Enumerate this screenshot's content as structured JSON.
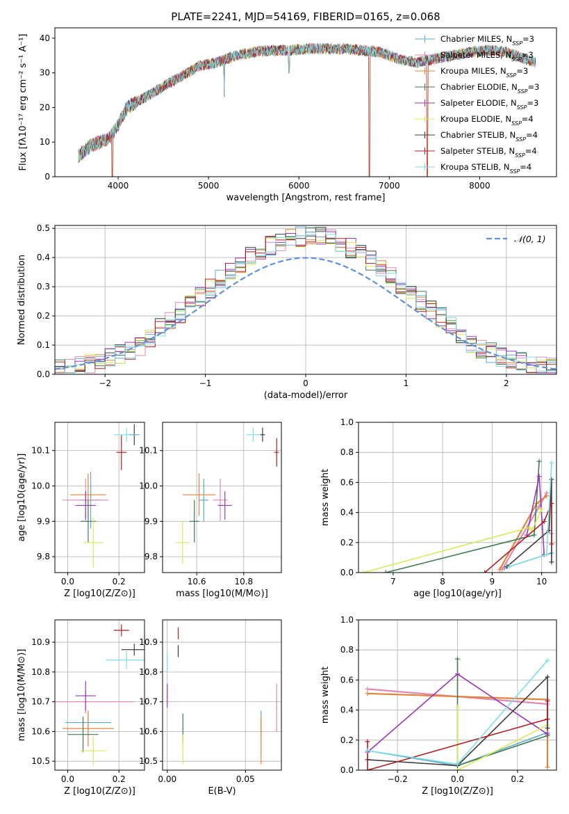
{
  "figure_title": "PLATE=2241, MJD=54169, FIBERID=0165, z=0.068",
  "colors": {
    "chabrier_miles": "#5aa9c9",
    "salpeter_miles": "#e087b5",
    "kroupa_miles": "#e0853c",
    "chabrier_elodie": "#3f7a52",
    "salpeter_elodie": "#9b36b8",
    "kroupa_elodie": "#d8ea5a",
    "chabrier_stelib": "#3c3c3c",
    "salpeter_stelib": "#b11e22",
    "kroupa_stelib": "#7fdde6",
    "normal": "#5f8fdc"
  },
  "chart_data": [
    {
      "id": "spectrum",
      "type": "line",
      "xlabel": "wavelength [Angstrom, rest frame]",
      "ylabel": "Flux [fλ10⁻¹⁷ erg cm⁻² s⁻¹ A⁻¹]",
      "xlim": [
        3300,
        8850
      ],
      "ylim": [
        0,
        43
      ],
      "xticks": [
        4000,
        5000,
        6000,
        7000,
        8000
      ],
      "yticks": [
        0,
        10,
        20,
        30,
        40
      ],
      "legend_position": "top-right",
      "series": [
        {
          "name": "Chabrier MILES, N_SSP=3",
          "color_key": "chabrier_miles"
        },
        {
          "name": "Salpeter MILES, N_SSP=3",
          "color_key": "salpeter_miles"
        },
        {
          "name": "Kroupa MILES, N_SSP=3",
          "color_key": "kroupa_miles"
        },
        {
          "name": "Chabrier ELODIE, N_SSP=3",
          "color_key": "chabrier_elodie"
        },
        {
          "name": "Salpeter ELODIE, N_SSP=3",
          "color_key": "salpeter_elodie"
        },
        {
          "name": "Kroupa ELODIE, N_SSP=4",
          "color_key": "kroupa_elodie"
        },
        {
          "name": "Chabrier STELIB, N_SSP=4",
          "color_key": "chabrier_stelib"
        },
        {
          "name": "Salpeter STELIB, N_SSP=4",
          "color_key": "salpeter_stelib"
        },
        {
          "name": "Kroupa STELIB, N_SSP=4",
          "color_key": "kroupa_stelib"
        }
      ],
      "continuum": {
        "x": [
          3560,
          3700,
          3900,
          4000,
          4100,
          4300,
          4500,
          4700,
          4900,
          5100,
          5300,
          5500,
          5700,
          5900,
          6100,
          6300,
          6500,
          6700,
          6900,
          7100,
          7300,
          7500,
          7700,
          7900,
          8100,
          8300,
          8500,
          8620
        ],
        "y": [
          6,
          9,
          11,
          15,
          20,
          23,
          26,
          29,
          32,
          33,
          35,
          36,
          36.5,
          36.5,
          37,
          37,
          37,
          36.5,
          36,
          34,
          33,
          34,
          35,
          36,
          36.5,
          36,
          34,
          33
        ]
      },
      "absorption": [
        {
          "x": 3934,
          "y": 0
        },
        {
          "x": 5175,
          "y": 23
        },
        {
          "x": 5890,
          "y": 30
        },
        {
          "x": 6780,
          "y": 0
        },
        {
          "x": 7420,
          "y": 0
        }
      ]
    },
    {
      "id": "residual_hist",
      "type": "histogram",
      "xlabel": "(data-model)/error",
      "ylabel": "Normed distribution",
      "xlim": [
        -2.5,
        2.5
      ],
      "ylim": [
        0,
        0.51
      ],
      "xticks": [
        -2,
        -1,
        0,
        1,
        2
      ],
      "yticks": [
        0.0,
        0.1,
        0.2,
        0.3,
        0.4,
        0.5
      ],
      "bin_width": 0.1,
      "grid": true,
      "legend_position": "top-right",
      "reference_curve": {
        "name": "N(0,1)",
        "mean": 0,
        "sigma": 1,
        "style": "dashed"
      }
    },
    {
      "id": "age_vs_Z",
      "type": "scatter",
      "xlabel": "Z [log10(Z/Z⊙)]",
      "ylabel": "age  [log10(age/yr)]",
      "xlim": [
        -0.05,
        0.3
      ],
      "ylim": [
        9.755,
        10.18
      ],
      "xticks": [
        0.0,
        0.2
      ],
      "yticks": [
        9.8,
        9.9,
        10.0,
        10.1
      ],
      "grid": true,
      "points": [
        {
          "key": "chabrier_miles",
          "x": 0.09,
          "y": 9.96,
          "xerr": 0.04,
          "yerr": 0.08
        },
        {
          "key": "salpeter_miles",
          "x": 0.07,
          "y": 9.96,
          "xerr": 0.09,
          "yerr": 0.06
        },
        {
          "key": "kroupa_miles",
          "x": 0.08,
          "y": 9.975,
          "xerr": 0.07,
          "yerr": 0.06
        },
        {
          "key": "chabrier_elodie",
          "x": 0.08,
          "y": 9.9,
          "xerr": 0.03,
          "yerr": 0.06
        },
        {
          "key": "salpeter_elodie",
          "x": 0.07,
          "y": 9.945,
          "xerr": 0.04,
          "yerr": 0.04
        },
        {
          "key": "kroupa_elodie",
          "x": 0.1,
          "y": 9.84,
          "xerr": 0.04,
          "yerr": 0.07
        },
        {
          "key": "chabrier_stelib",
          "x": 0.26,
          "y": 10.145,
          "xerr": 0.02,
          "yerr": 0.03
        },
        {
          "key": "salpeter_stelib",
          "x": 0.21,
          "y": 10.095,
          "xerr": 0.02,
          "yerr": 0.05
        },
        {
          "key": "kroupa_stelib",
          "x": 0.23,
          "y": 10.145,
          "xerr": 0.05,
          "yerr": 0.02
        }
      ]
    },
    {
      "id": "age_vs_mass",
      "type": "scatter",
      "xlabel": "mass [log10(M/M⊙)]",
      "ylabel": "",
      "xlim": [
        10.455,
        10.96
      ],
      "ylim": [
        9.755,
        10.18
      ],
      "xticks": [
        10.6,
        10.8
      ],
      "yticks": [
        9.8,
        9.9,
        10.0,
        10.1
      ],
      "grid": true,
      "points": [
        {
          "key": "chabrier_miles",
          "x": 10.63,
          "y": 9.96,
          "xerr": 0.02,
          "yerr": 0.06
        },
        {
          "key": "salpeter_miles",
          "x": 10.7,
          "y": 9.96,
          "xerr": 0.03,
          "yerr": 0.06
        },
        {
          "key": "kroupa_miles",
          "x": 10.61,
          "y": 9.975,
          "xerr": 0.07,
          "yerr": 0.06
        },
        {
          "key": "chabrier_elodie",
          "x": 10.59,
          "y": 9.9,
          "xerr": 0.02,
          "yerr": 0.06
        },
        {
          "key": "salpeter_elodie",
          "x": 10.72,
          "y": 9.945,
          "xerr": 0.03,
          "yerr": 0.04
        },
        {
          "key": "kroupa_elodie",
          "x": 10.54,
          "y": 9.84,
          "xerr": 0.03,
          "yerr": 0.06
        },
        {
          "key": "chabrier_stelib",
          "x": 10.88,
          "y": 10.145,
          "xerr": 0.01,
          "yerr": 0.02
        },
        {
          "key": "salpeter_stelib",
          "x": 10.94,
          "y": 10.095,
          "xerr": 0.01,
          "yerr": 0.04
        },
        {
          "key": "kroupa_stelib",
          "x": 10.84,
          "y": 10.145,
          "xerr": 0.03,
          "yerr": 0.02
        }
      ]
    },
    {
      "id": "mass_weight_vs_age",
      "type": "line",
      "xlabel": "age  [log10(age/yr)]",
      "ylabel": "mass weight",
      "xlim": [
        6.3,
        10.3
      ],
      "ylim": [
        0,
        1
      ],
      "xticks": [
        7,
        8,
        9,
        10
      ],
      "yticks": [
        0.0,
        0.2,
        0.4,
        0.6,
        0.8,
        1.0
      ],
      "grid": true,
      "series": [
        {
          "key": "chabrier_miles",
          "x": [
            9.25,
            10.2,
            10.2
          ],
          "y": [
            0.03,
            0.13,
            0.26
          ]
        },
        {
          "key": "salpeter_miles",
          "x": [
            9.2,
            9.95,
            10.1
          ],
          "y": [
            0.02,
            0.44,
            0.53
          ]
        },
        {
          "key": "kroupa_miles",
          "x": [
            9.15,
            9.9,
            10.1
          ],
          "y": [
            0.02,
            0.46,
            0.51
          ]
        },
        {
          "key": "chabrier_elodie",
          "x": [
            6.85,
            9.85,
            9.95
          ],
          "y": [
            0.0,
            0.25,
            0.74
          ]
        },
        {
          "key": "salpeter_elodie",
          "x": [
            9.7,
            9.95,
            10.05
          ],
          "y": [
            0.25,
            0.64,
            0.12
          ]
        },
        {
          "key": "kroupa_elodie",
          "x": [
            6.4,
            9.75,
            9.8,
            10.0
          ],
          "y": [
            0.0,
            0.3,
            0.28,
            0.42
          ]
        },
        {
          "key": "chabrier_stelib",
          "x": [
            9.3,
            10.15,
            10.2,
            10.2
          ],
          "y": [
            0.04,
            0.28,
            0.62,
            0.07
          ]
        },
        {
          "key": "salpeter_stelib",
          "x": [
            8.85,
            10.05,
            10.2,
            10.2
          ],
          "y": [
            0.0,
            0.34,
            0.46,
            0.19
          ]
        },
        {
          "key": "kroupa_stelib",
          "x": [
            9.35,
            10.1,
            10.2
          ],
          "y": [
            0.04,
            0.12,
            0.73
          ]
        }
      ]
    },
    {
      "id": "mass_vs_Z",
      "type": "scatter",
      "xlabel": "Z [log10(Z/Z⊙)]",
      "ylabel": "mass [log10(M/M⊙)]",
      "xlim": [
        -0.05,
        0.3
      ],
      "ylim": [
        10.47,
        10.975
      ],
      "xticks": [
        0.0,
        0.2
      ],
      "yticks": [
        10.5,
        10.6,
        10.7,
        10.8,
        10.9
      ],
      "grid": true,
      "points": [
        {
          "key": "chabrier_miles",
          "x": 0.08,
          "y": 10.63,
          "xerr": 0.09,
          "yerr": 0.03
        },
        {
          "key": "salpeter_miles",
          "x": 0.07,
          "y": 10.7,
          "xerr": 0.19,
          "yerr": 0.04
        },
        {
          "key": "kroupa_miles",
          "x": 0.08,
          "y": 10.61,
          "xerr": 0.1,
          "yerr": 0.06
        },
        {
          "key": "chabrier_elodie",
          "x": 0.06,
          "y": 10.59,
          "xerr": 0.06,
          "yerr": 0.06
        },
        {
          "key": "salpeter_elodie",
          "x": 0.07,
          "y": 10.72,
          "xerr": 0.04,
          "yerr": 0.05
        },
        {
          "key": "kroupa_elodie",
          "x": 0.1,
          "y": 10.535,
          "xerr": 0.05,
          "yerr": 0.05
        },
        {
          "key": "chabrier_stelib",
          "x": 0.26,
          "y": 10.875,
          "xerr": 0.05,
          "yerr": 0.02
        },
        {
          "key": "salpeter_stelib",
          "x": 0.21,
          "y": 10.94,
          "xerr": 0.03,
          "yerr": 0.02
        },
        {
          "key": "kroupa_stelib",
          "x": 0.23,
          "y": 10.84,
          "xerr": 0.08,
          "yerr": 0.03
        }
      ]
    },
    {
      "id": "mass_vs_ebv",
      "type": "scatter",
      "xlabel": "E(B-V)",
      "ylabel": "",
      "xlim": [
        -0.003,
        0.073
      ],
      "ylim": [
        10.47,
        10.975
      ],
      "xticks": [
        0.0,
        0.05
      ],
      "yticks": [
        10.5,
        10.6,
        10.7,
        10.8,
        10.9
      ],
      "grid": true,
      "points": [
        {
          "key": "chabrier_miles",
          "x": 0.06,
          "y": 10.63,
          "xerr": 0,
          "yerr": 0.04
        },
        {
          "key": "salpeter_miles",
          "x": 0.07,
          "y": 10.68,
          "xerr": 0,
          "yerr": 0.08
        },
        {
          "key": "kroupa_miles",
          "x": 0.06,
          "y": 10.57,
          "xerr": 0,
          "yerr": 0.08
        },
        {
          "key": "chabrier_elodie",
          "x": 0.01,
          "y": 10.61,
          "xerr": 0,
          "yerr": 0.05
        },
        {
          "key": "salpeter_elodie",
          "x": 0.0,
          "y": 10.72,
          "xerr": 0,
          "yerr": 0.04
        },
        {
          "key": "kroupa_elodie",
          "x": 0.01,
          "y": 10.54,
          "xerr": 0,
          "yerr": 0.05
        },
        {
          "key": "chabrier_stelib",
          "x": 0.007,
          "y": 10.87,
          "xerr": 0,
          "yerr": 0.02
        },
        {
          "key": "salpeter_stelib",
          "x": 0.007,
          "y": 10.93,
          "xerr": 0,
          "yerr": 0.02
        },
        {
          "key": "kroupa_stelib",
          "x": 0.0,
          "y": 10.83,
          "xerr": 0,
          "yerr": 0.03
        }
      ]
    },
    {
      "id": "mass_weight_vs_Z",
      "type": "line",
      "xlabel": "Z [log10(Z/Z⊙)]",
      "ylabel": "mass weight",
      "xlim": [
        -0.33,
        0.33
      ],
      "ylim": [
        0,
        1
      ],
      "xticks": [
        -0.2,
        0.0,
        0.2
      ],
      "yticks": [
        0.0,
        0.2,
        0.4,
        0.6,
        0.8,
        1.0
      ],
      "grid": true,
      "series": [
        {
          "key": "chabrier_miles",
          "x": [
            -0.3,
            0.0,
            0.3
          ],
          "y": [
            0.13,
            0.03,
            0.25
          ]
        },
        {
          "key": "salpeter_miles",
          "x": [
            -0.3,
            0.3
          ],
          "y": [
            0.54,
            0.44
          ]
        },
        {
          "key": "kroupa_miles",
          "x": [
            -0.3,
            0.3,
            0.3
          ],
          "y": [
            0.51,
            0.47,
            0.02
          ]
        },
        {
          "key": "chabrier_elodie",
          "x": [
            0.0,
            0.0,
            0.3
          ],
          "y": [
            0.74,
            0.03,
            0.23
          ]
        },
        {
          "key": "salpeter_elodie",
          "x": [
            -0.3,
            0.0,
            0.3
          ],
          "y": [
            0.12,
            0.64,
            0.24
          ]
        },
        {
          "key": "kroupa_elodie",
          "x": [
            0.0,
            0.0,
            0.3
          ],
          "y": [
            0.42,
            0.0,
            0.3
          ]
        },
        {
          "key": "chabrier_stelib",
          "x": [
            -0.3,
            0.0,
            0.3,
            0.3
          ],
          "y": [
            0.07,
            0.03,
            0.62,
            0.28
          ]
        },
        {
          "key": "salpeter_stelib",
          "x": [
            -0.3,
            -0.3,
            0.3,
            0.3
          ],
          "y": [
            0.19,
            0.0,
            0.34,
            0.46
          ]
        },
        {
          "key": "kroupa_stelib",
          "x": [
            -0.3,
            0.0,
            0.3
          ],
          "y": [
            0.13,
            0.04,
            0.73
          ]
        }
      ]
    }
  ]
}
